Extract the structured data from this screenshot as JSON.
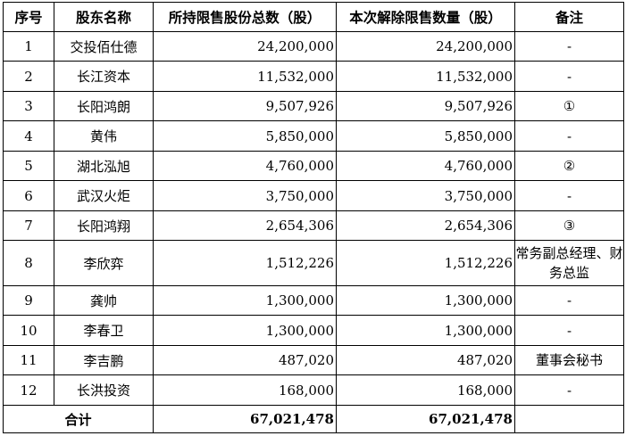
{
  "table": {
    "headers": [
      "序号",
      "股东名称",
      "所持限售股份总数（股）",
      "本次解除限售数量（股）",
      "备注"
    ],
    "rows": [
      {
        "no": "1",
        "name": "交投佰仕德",
        "total": "24,200,000",
        "released": "24,200,000",
        "note": "-"
      },
      {
        "no": "2",
        "name": "长江资本",
        "total": "11,532,000",
        "released": "11,532,000",
        "note": "-"
      },
      {
        "no": "3",
        "name": "长阳鸿朗",
        "total": "9,507,926",
        "released": "9,507,926",
        "note": "①"
      },
      {
        "no": "4",
        "name": "黄伟",
        "total": "5,850,000",
        "released": "5,850,000",
        "note": "-"
      },
      {
        "no": "5",
        "name": "湖北泓旭",
        "total": "4,760,000",
        "released": "4,760,000",
        "note": "②"
      },
      {
        "no": "6",
        "name": "武汉火炬",
        "total": "3,750,000",
        "released": "3,750,000",
        "note": "-"
      },
      {
        "no": "7",
        "name": "长阳鸿翔",
        "total": "2,654,306",
        "released": "2,654,306",
        "note": "③"
      },
      {
        "no": "8",
        "name": "李欣弈",
        "total": "1,512,226",
        "released": "1,512,226",
        "note": "常务副总经理、财务总监"
      },
      {
        "no": "9",
        "name": "龚帅",
        "total": "1,300,000",
        "released": "1,300,000",
        "note": "-"
      },
      {
        "no": "10",
        "name": "李春卫",
        "total": "1,300,000",
        "released": "1,300,000",
        "note": "-"
      },
      {
        "no": "11",
        "name": "李吉鹏",
        "total": "487,020",
        "released": "487,020",
        "note": "董事会秘书"
      },
      {
        "no": "12",
        "name": "长洪投资",
        "total": "168,000",
        "released": "168,000",
        "note": "-"
      }
    ],
    "footer": {
      "label": "合计",
      "total": "67,021,478",
      "released": "67,021,478",
      "note": ""
    }
  }
}
